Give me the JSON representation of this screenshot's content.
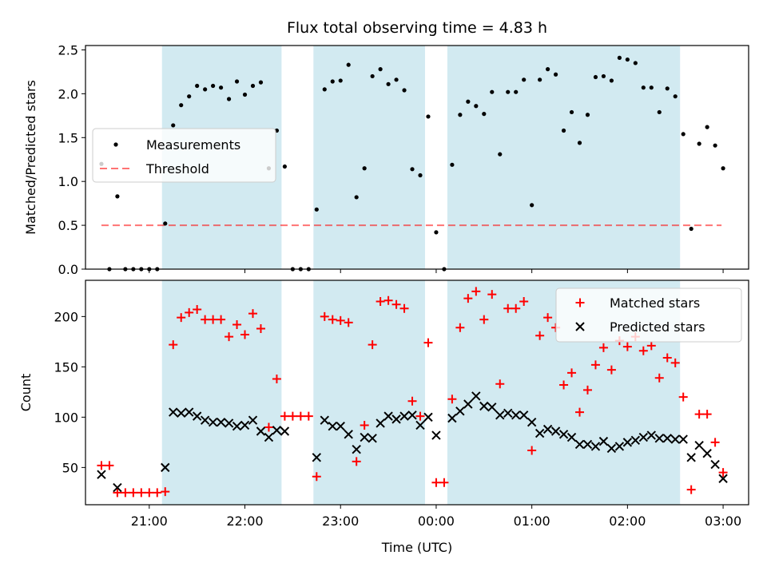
{
  "title": "Flux total observing time = 4.83 h",
  "colors": {
    "shade": "#add8e6",
    "measurement": "#000000",
    "threshold": "#ff0000",
    "matched": "#ff0000",
    "predicted": "#000000"
  },
  "chart_data": [
    {
      "type": "scatter",
      "panel": "top",
      "ylabel": "Matched/Predicted stars",
      "xlabel": "",
      "ylim": [
        0,
        2.55
      ],
      "yticks": [
        "0.0",
        "0.5",
        "1.0",
        "1.5",
        "2.0",
        "2.5"
      ],
      "legend_position": "center-left",
      "shaded_intervals": [
        [
          "21:08",
          "22:23"
        ],
        [
          "22:43",
          "23:53"
        ],
        [
          "00:07",
          "02:33"
        ]
      ],
      "threshold": {
        "name": "Threshold",
        "value": 0.5,
        "x_range": [
          "20:30",
          "02:59"
        ]
      },
      "series": [
        {
          "name": "Measurements",
          "marker": "dot",
          "points": [
            [
              "20:30",
              1.2
            ],
            [
              "20:35",
              0.0
            ],
            [
              "20:40",
              0.83
            ],
            [
              "20:45",
              0.0
            ],
            [
              "20:50",
              0.0
            ],
            [
              "20:55",
              0.0
            ],
            [
              "21:00",
              0.0
            ],
            [
              "21:05",
              0.0
            ],
            [
              "21:10",
              0.52
            ],
            [
              "21:15",
              1.64
            ],
            [
              "21:20",
              1.87
            ],
            [
              "21:25",
              1.97
            ],
            [
              "21:30",
              2.09
            ],
            [
              "21:35",
              2.05
            ],
            [
              "21:40",
              2.09
            ],
            [
              "21:45",
              2.07
            ],
            [
              "21:50",
              1.94
            ],
            [
              "21:55",
              2.14
            ],
            [
              "22:00",
              1.99
            ],
            [
              "22:05",
              2.09
            ],
            [
              "22:10",
              2.13
            ],
            [
              "22:15",
              1.15
            ],
            [
              "22:20",
              1.58
            ],
            [
              "22:25",
              1.17
            ],
            [
              "22:30",
              0.0
            ],
            [
              "22:35",
              0.0
            ],
            [
              "22:40",
              0.0
            ],
            [
              "22:45",
              0.68
            ],
            [
              "22:50",
              2.05
            ],
            [
              "22:55",
              2.14
            ],
            [
              "23:00",
              2.15
            ],
            [
              "23:05",
              2.33
            ],
            [
              "23:10",
              0.82
            ],
            [
              "23:15",
              1.15
            ],
            [
              "23:20",
              2.2
            ],
            [
              "23:25",
              2.28
            ],
            [
              "23:30",
              2.11
            ],
            [
              "23:35",
              2.16
            ],
            [
              "23:40",
              2.04
            ],
            [
              "23:45",
              1.14
            ],
            [
              "23:50",
              1.07
            ],
            [
              "23:55",
              1.74
            ],
            [
              "00:00",
              0.42
            ],
            [
              "00:05",
              0.0
            ],
            [
              "00:10",
              1.19
            ],
            [
              "00:15",
              1.76
            ],
            [
              "00:20",
              1.91
            ],
            [
              "00:25",
              1.86
            ],
            [
              "00:30",
              1.77
            ],
            [
              "00:35",
              2.02
            ],
            [
              "00:40",
              1.31
            ],
            [
              "00:45",
              2.02
            ],
            [
              "00:50",
              2.02
            ],
            [
              "00:55",
              2.16
            ],
            [
              "01:00",
              0.73
            ],
            [
              "01:05",
              2.16
            ],
            [
              "01:10",
              2.28
            ],
            [
              "01:15",
              2.22
            ],
            [
              "01:20",
              1.58
            ],
            [
              "01:25",
              1.79
            ],
            [
              "01:30",
              1.44
            ],
            [
              "01:35",
              1.76
            ],
            [
              "01:40",
              2.19
            ],
            [
              "01:45",
              2.2
            ],
            [
              "01:50",
              2.15
            ],
            [
              "01:55",
              2.41
            ],
            [
              "02:00",
              2.39
            ],
            [
              "02:05",
              2.35
            ],
            [
              "02:10",
              2.07
            ],
            [
              "02:15",
              2.07
            ],
            [
              "02:20",
              1.79
            ],
            [
              "02:25",
              2.06
            ],
            [
              "02:30",
              1.97
            ],
            [
              "02:35",
              1.54
            ],
            [
              "02:40",
              0.46
            ],
            [
              "02:45",
              1.43
            ],
            [
              "02:50",
              1.62
            ],
            [
              "02:55",
              1.41
            ],
            [
              "03:00",
              1.15
            ]
          ]
        }
      ]
    },
    {
      "type": "scatter",
      "panel": "bottom",
      "ylabel": "Count",
      "xlabel": "Time (UTC)",
      "ylim": [
        13,
        236
      ],
      "yticks": [
        "50",
        "100",
        "150",
        "200"
      ],
      "xticks": [
        "21:00",
        "22:00",
        "23:00",
        "00:00",
        "01:00",
        "02:00",
        "03:00"
      ],
      "legend_position": "top-right",
      "series": [
        {
          "name": "Matched stars",
          "marker": "plus",
          "points": [
            [
              "20:30",
              52
            ],
            [
              "20:35",
              52
            ],
            [
              "20:40",
              25
            ],
            [
              "20:45",
              25
            ],
            [
              "20:50",
              25
            ],
            [
              "20:55",
              25
            ],
            [
              "21:00",
              25
            ],
            [
              "21:05",
              25
            ],
            [
              "21:10",
              26
            ],
            [
              "21:15",
              172
            ],
            [
              "21:20",
              199
            ],
            [
              "21:25",
              204
            ],
            [
              "21:30",
              207
            ],
            [
              "21:35",
              197
            ],
            [
              "21:40",
              197
            ],
            [
              "21:45",
              197
            ],
            [
              "21:50",
              180
            ],
            [
              "21:55",
              192
            ],
            [
              "22:00",
              182
            ],
            [
              "22:05",
              203
            ],
            [
              "22:10",
              188
            ],
            [
              "22:15",
              90
            ],
            [
              "22:20",
              138
            ],
            [
              "22:25",
              101
            ],
            [
              "22:30",
              101
            ],
            [
              "22:35",
              101
            ],
            [
              "22:40",
              101
            ],
            [
              "22:45",
              41
            ],
            [
              "22:50",
              200
            ],
            [
              "22:55",
              197
            ],
            [
              "23:00",
              196
            ],
            [
              "23:05",
              194
            ],
            [
              "23:10",
              56
            ],
            [
              "23:15",
              92
            ],
            [
              "23:20",
              172
            ],
            [
              "23:25",
              215
            ],
            [
              "23:30",
              216
            ],
            [
              "23:35",
              212
            ],
            [
              "23:40",
              208
            ],
            [
              "23:45",
              116
            ],
            [
              "23:50",
              101
            ],
            [
              "23:55",
              174
            ],
            [
              "00:00",
              35
            ],
            [
              "00:05",
              35
            ],
            [
              "00:10",
              118
            ],
            [
              "00:15",
              189
            ],
            [
              "00:20",
              218
            ],
            [
              "00:25",
              225
            ],
            [
              "00:30",
              197
            ],
            [
              "00:35",
              222
            ],
            [
              "00:40",
              133
            ],
            [
              "00:45",
              208
            ],
            [
              "00:50",
              208
            ],
            [
              "00:55",
              215
            ],
            [
              "01:00",
              67
            ],
            [
              "01:05",
              181
            ],
            [
              "01:10",
              199
            ],
            [
              "01:15",
              189
            ],
            [
              "01:20",
              132
            ],
            [
              "01:25",
              144
            ],
            [
              "01:30",
              105
            ],
            [
              "01:35",
              127
            ],
            [
              "01:40",
              152
            ],
            [
              "01:45",
              169
            ],
            [
              "01:50",
              147
            ],
            [
              "01:55",
              176
            ],
            [
              "02:00",
              170
            ],
            [
              "02:05",
              180
            ],
            [
              "02:10",
              166
            ],
            [
              "02:15",
              171
            ],
            [
              "02:20",
              139
            ],
            [
              "02:25",
              159
            ],
            [
              "02:30",
              154
            ],
            [
              "02:35",
              120
            ],
            [
              "02:40",
              28
            ],
            [
              "02:45",
              103
            ],
            [
              "02:50",
              103
            ],
            [
              "02:55",
              75
            ],
            [
              "03:00",
              45
            ]
          ]
        },
        {
          "name": "Predicted stars",
          "marker": "x",
          "points": [
            [
              "20:30",
              43
            ],
            [
              "20:40",
              30
            ],
            [
              "21:10",
              50
            ],
            [
              "21:15",
              105
            ],
            [
              "21:20",
              104
            ],
            [
              "21:25",
              105
            ],
            [
              "21:30",
              101
            ],
            [
              "21:35",
              97
            ],
            [
              "21:40",
              95
            ],
            [
              "21:45",
              95
            ],
            [
              "21:50",
              94
            ],
            [
              "21:55",
              91
            ],
            [
              "22:00",
              92
            ],
            [
              "22:05",
              97
            ],
            [
              "22:10",
              86
            ],
            [
              "22:15",
              80
            ],
            [
              "22:20",
              87
            ],
            [
              "22:25",
              86
            ],
            [
              "22:45",
              60
            ],
            [
              "22:50",
              97
            ],
            [
              "22:55",
              91
            ],
            [
              "23:00",
              91
            ],
            [
              "23:05",
              83
            ],
            [
              "23:10",
              68
            ],
            [
              "23:15",
              80
            ],
            [
              "23:20",
              79
            ],
            [
              "23:25",
              94
            ],
            [
              "23:30",
              101
            ],
            [
              "23:35",
              98
            ],
            [
              "23:40",
              101
            ],
            [
              "23:45",
              102
            ],
            [
              "23:50",
              92
            ],
            [
              "23:55",
              100
            ],
            [
              "00:00",
              82
            ],
            [
              "00:10",
              99
            ],
            [
              "00:15",
              106
            ],
            [
              "00:20",
              113
            ],
            [
              "00:25",
              121
            ],
            [
              "00:30",
              111
            ],
            [
              "00:35",
              110
            ],
            [
              "00:40",
              102
            ],
            [
              "00:45",
              104
            ],
            [
              "00:50",
              102
            ],
            [
              "00:55",
              102
            ],
            [
              "01:00",
              95
            ],
            [
              "01:05",
              84
            ],
            [
              "01:10",
              88
            ],
            [
              "01:15",
              86
            ],
            [
              "01:20",
              83
            ],
            [
              "01:25",
              80
            ],
            [
              "01:30",
              73
            ],
            [
              "01:35",
              73
            ],
            [
              "01:40",
              71
            ],
            [
              "01:45",
              76
            ],
            [
              "01:50",
              69
            ],
            [
              "01:55",
              71
            ],
            [
              "02:00",
              75
            ],
            [
              "02:05",
              77
            ],
            [
              "02:10",
              80
            ],
            [
              "02:15",
              82
            ],
            [
              "02:20",
              79
            ],
            [
              "02:25",
              79
            ],
            [
              "02:30",
              78
            ],
            [
              "02:35",
              78
            ],
            [
              "02:40",
              60
            ],
            [
              "02:45",
              72
            ],
            [
              "02:50",
              64
            ],
            [
              "02:55",
              53
            ],
            [
              "03:00",
              39
            ]
          ]
        }
      ]
    }
  ]
}
